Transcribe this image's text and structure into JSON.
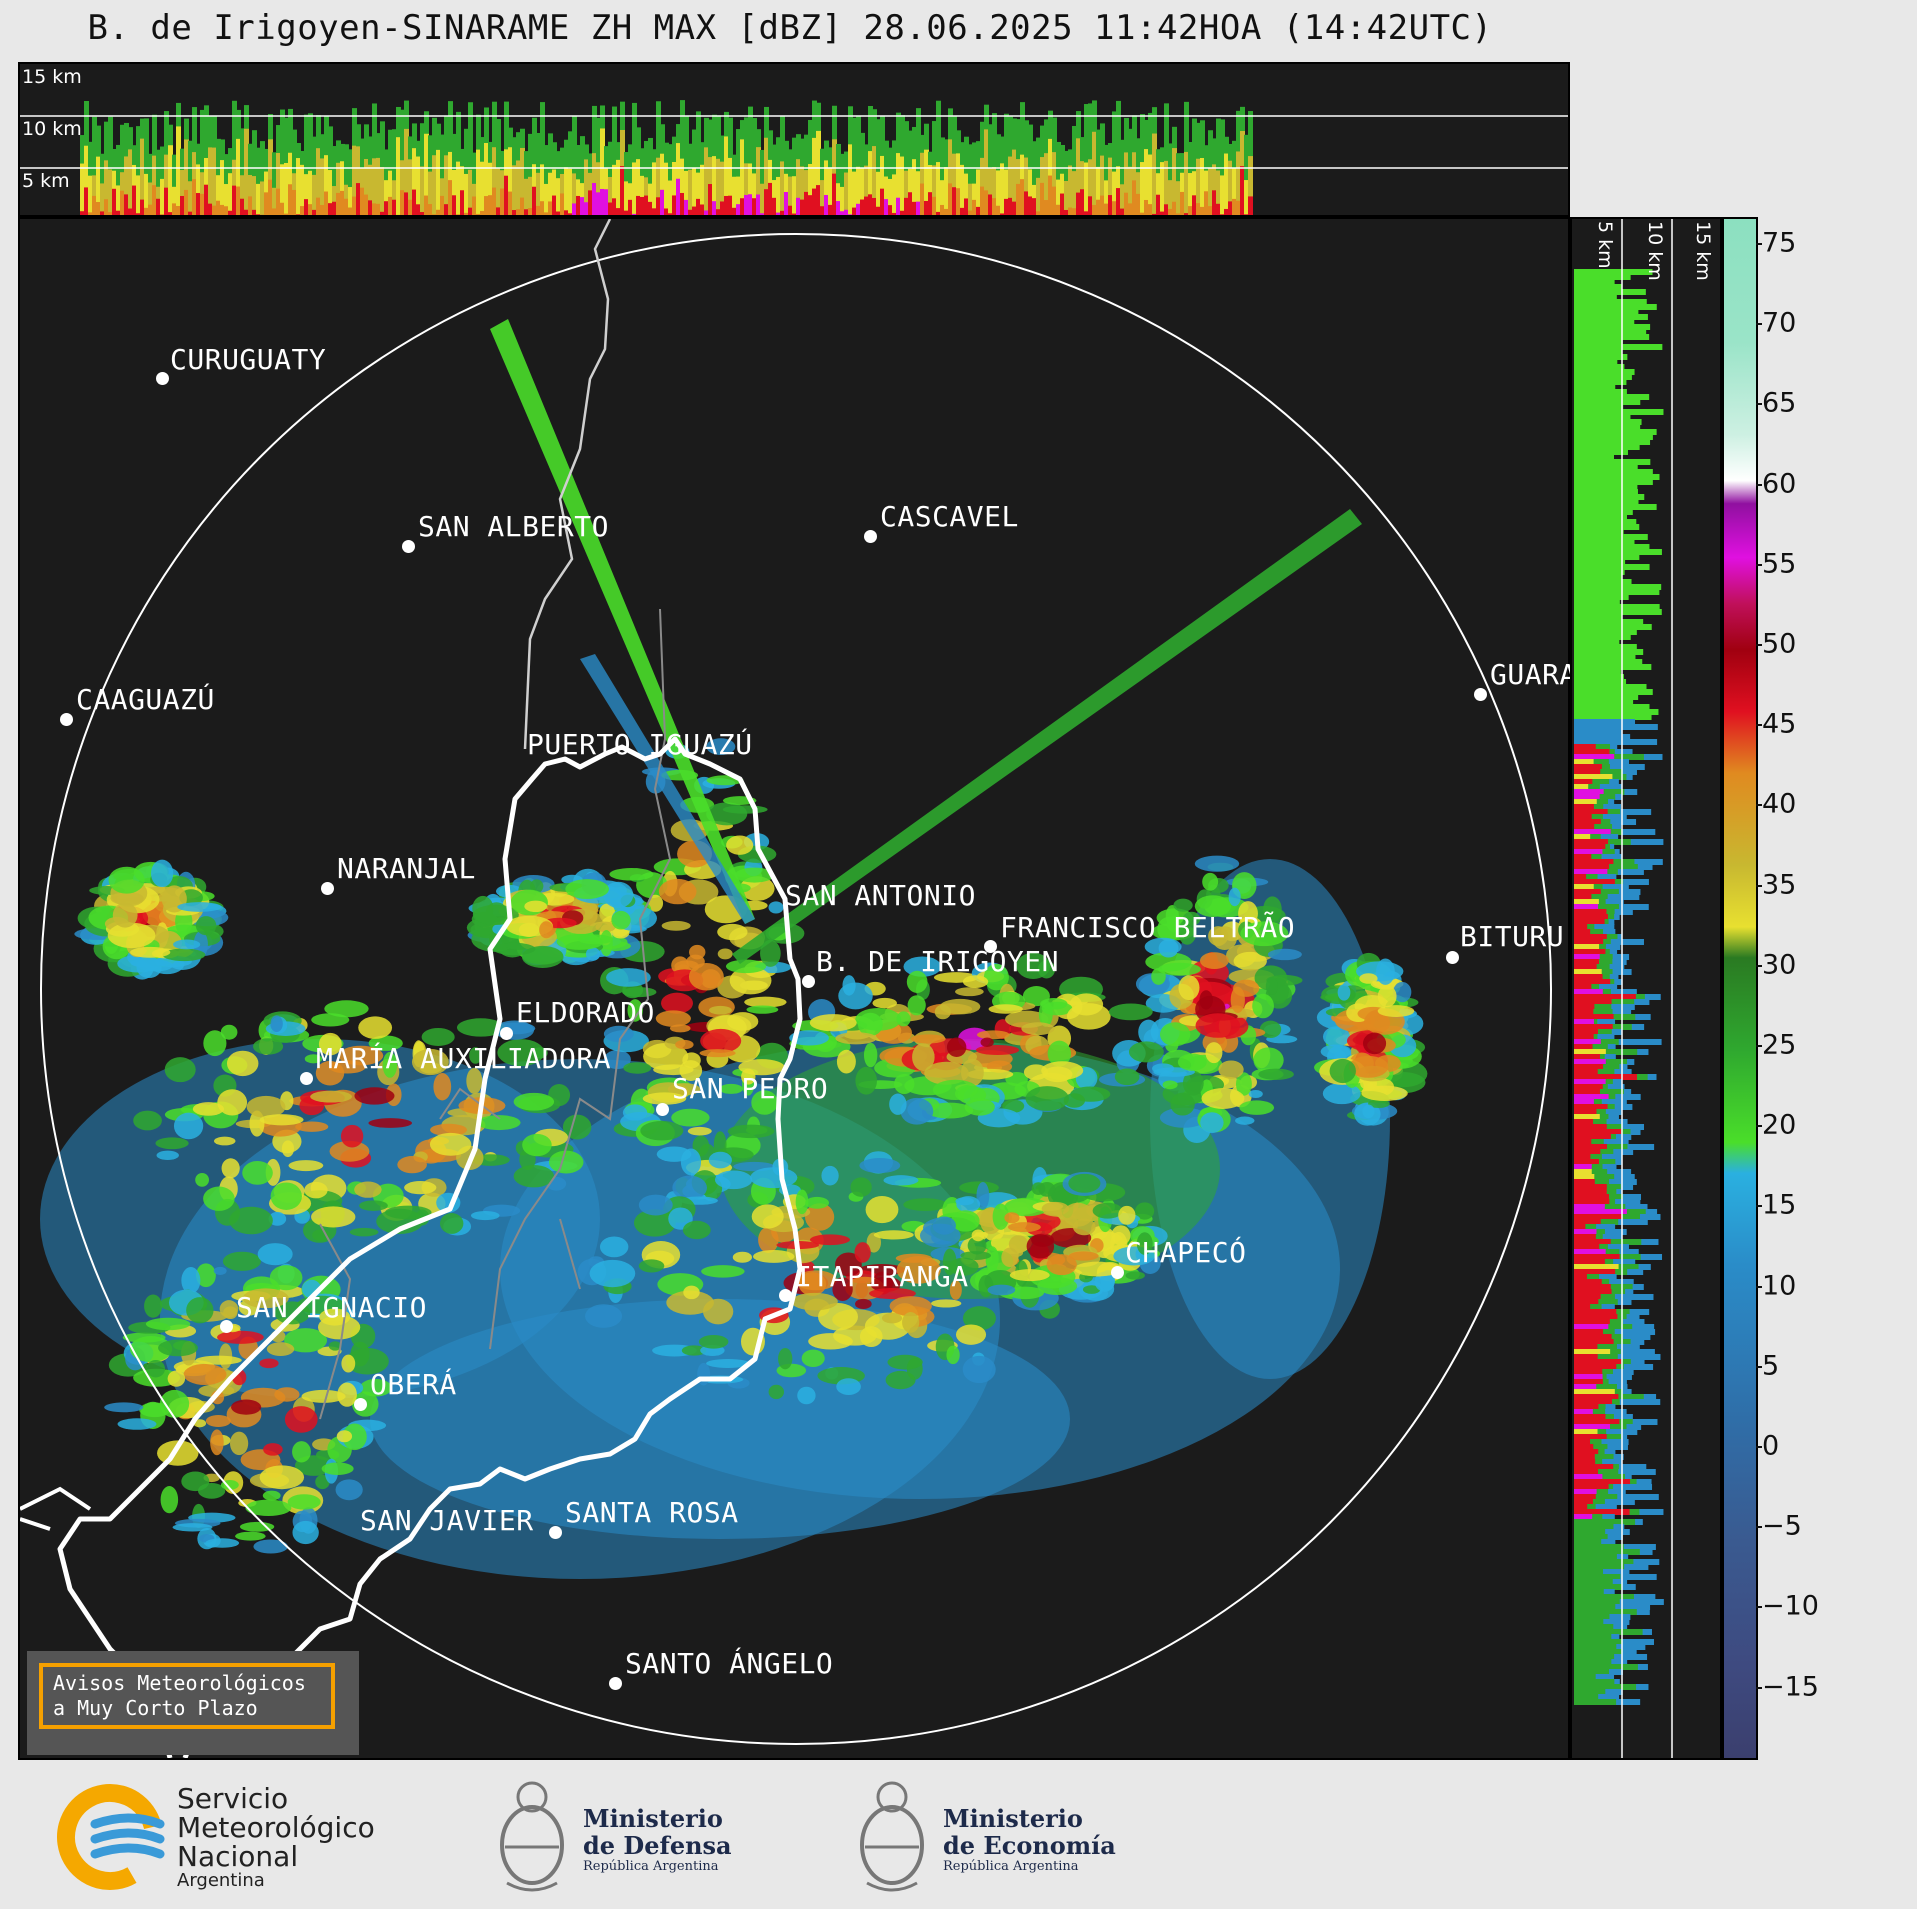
{
  "title": "B. de Irigoyen-SINARAME ZH MAX [dBZ] 28.06.2025 11:42HOA (14:42UTC)",
  "top_panel": {
    "km_labels": [
      "15 km",
      "10 km",
      "5 km"
    ]
  },
  "right_panel": {
    "km_labels": [
      "5 km",
      "10 km",
      "15 km"
    ]
  },
  "cities": [
    {
      "name": "CURUGUATY"
    },
    {
      "name": "SAN ALBERTO"
    },
    {
      "name": "CASCAVEL"
    },
    {
      "name": "CAAGUAZÚ"
    },
    {
      "name": "PUERTO IGUAZÚ"
    },
    {
      "name": "GUARA"
    },
    {
      "name": "NARANJAL"
    },
    {
      "name": "SAN ANTONIO"
    },
    {
      "name": "FRANCISCO BELTRÃO"
    },
    {
      "name": "B. DE IRIGOYEN"
    },
    {
      "name": "BITURU"
    },
    {
      "name": "ELDORADO"
    },
    {
      "name": "MARÍA AUXILIADORA"
    },
    {
      "name": "SAN PEDRO"
    },
    {
      "name": "CHAPECÓ"
    },
    {
      "name": "ITAPIRANGA"
    },
    {
      "name": "SAN IGNACIO"
    },
    {
      "name": "OBERÁ"
    },
    {
      "name": "SAN JAVIER"
    },
    {
      "name": "SANTA ROSA"
    },
    {
      "name": "SANTO ÁNGELO"
    }
  ],
  "colorbar": {
    "unit": "dBZ",
    "ticks": [
      "75",
      "70",
      "65",
      "60",
      "55",
      "50",
      "45",
      "40",
      "35",
      "30",
      "25",
      "20",
      "15",
      "10",
      "5",
      "0",
      "−5",
      "−10",
      "−15"
    ],
    "colors": {
      "neg": "#3b3f6e",
      "low_blue": "#3a6aa0",
      "blue": "#2a8cc8",
      "cyan": "#2ab0e0",
      "green": "#2fa82f",
      "light_green": "#4ade2a",
      "yellow": "#e8e030",
      "olive": "#c8b830",
      "orange": "#e08a20",
      "red": "#e01020",
      "dark_red": "#a00010",
      "magenta": "#e010e0",
      "purple": "#9010a0",
      "white": "#ffffff",
      "mint": "#90e0c0"
    }
  },
  "warning_box": {
    "line1": "Avisos Meteorológicos",
    "line2": "a Muy Corto Plazo"
  },
  "logos": {
    "smn": {
      "line1": "Servicio",
      "line2": "Meteorológico",
      "line3": "Nacional",
      "line4": "Argentina"
    },
    "defensa": {
      "line1": "Ministerio",
      "line2": "de Defensa",
      "line3": "República Argentina"
    },
    "economia": {
      "line1": "Ministerio",
      "line2": "de Economía",
      "line3": "República Argentina"
    }
  }
}
